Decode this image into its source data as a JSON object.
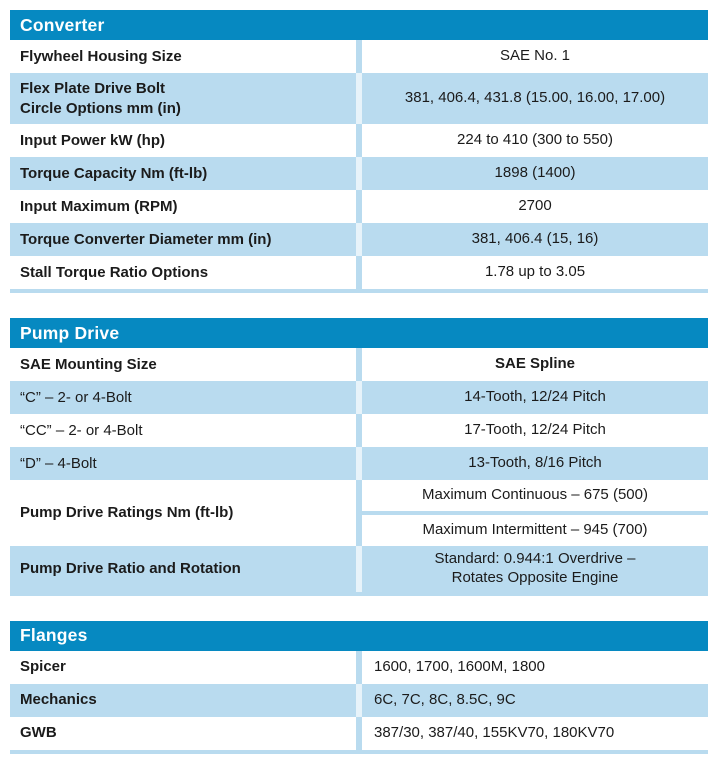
{
  "colors": {
    "header_bg": "#0689c1",
    "header_text": "#ffffff",
    "row_white_bg": "#ffffff",
    "row_alt_bg": "#b9dbef",
    "divider_on_white": "#b9dbef",
    "divider_on_alt": "#e7f3fa",
    "section_rule": "#b9dbef",
    "text": "#1b1b1b"
  },
  "sections": [
    {
      "title": "Converter",
      "value_align": "center",
      "rows": [
        {
          "label": "Flywheel Housing Size",
          "value": "SAE No. 1"
        },
        {
          "label": "Flex Plate Drive Bolt\nCircle Options mm (in)",
          "value": "381, 406.4, 431.8 (15.00, 16.00, 17.00)"
        },
        {
          "label": "Input Power kW (hp)",
          "value": "224 to 410 (300 to 550)"
        },
        {
          "label": "Torque Capacity Nm (ft-lb)",
          "value": "1898 (1400)"
        },
        {
          "label": "Input Maximum (RPM)",
          "value": "2700"
        },
        {
          "label": "Torque Converter Diameter mm (in)",
          "value": "381, 406.4 (15, 16)"
        },
        {
          "label": "Stall Torque Ratio Options",
          "value": "1.78 up to 3.05"
        }
      ]
    },
    {
      "title": "Pump Drive",
      "value_align": "center",
      "rows": [
        {
          "label": "SAE Mounting Size",
          "value": "SAE Spline",
          "value_bold": true
        },
        {
          "label": "“C” – 2- or 4-Bolt",
          "label_bold": false,
          "value": "14-Tooth, 12/24 Pitch"
        },
        {
          "label": "“CC” – 2- or 4-Bolt",
          "label_bold": false,
          "value": "17-Tooth, 12/24 Pitch"
        },
        {
          "label": "“D” – 4-Bolt",
          "label_bold": false,
          "value": "13-Tooth, 8/16 Pitch"
        },
        {
          "label": "Pump Drive Ratings Nm (ft-lb)",
          "values": [
            "Maximum Continuous – 675 (500)",
            "Maximum Intermittent – 945 (700)"
          ]
        },
        {
          "label": "Pump Drive Ratio and Rotation",
          "value": "Standard: 0.944:1 Overdrive –\nRotates Opposite Engine"
        }
      ]
    },
    {
      "title": "Flanges",
      "value_align": "left",
      "rows": [
        {
          "label": "Spicer",
          "value": "1600, 1700, 1600M, 1800"
        },
        {
          "label": "Mechanics",
          "value": "6C, 7C, 8C, 8.5C, 9C"
        },
        {
          "label": "GWB",
          "value": "387/30, 387/40, 155KV70, 180KV70"
        }
      ]
    }
  ]
}
